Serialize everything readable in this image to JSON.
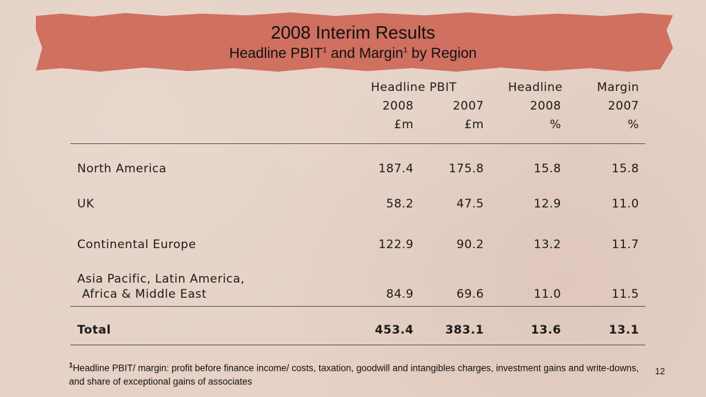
{
  "title": "2008 Interim Results",
  "subtitle_parts": {
    "a": "Headline PBIT",
    "sup1": "1",
    "b": " and Margin",
    "sup2": "1",
    "c": " by Region"
  },
  "header": {
    "group1": "Headline PBIT",
    "group2_a": "Headline",
    "group2_b": "Margin",
    "cols": [
      {
        "year": "2008",
        "unit": "£m"
      },
      {
        "year": "2007",
        "unit": "£m"
      },
      {
        "year": "2008",
        "unit": "%"
      },
      {
        "year": "2007",
        "unit": "%"
      }
    ]
  },
  "rows": [
    {
      "region": "North America",
      "values": [
        "187.4",
        "175.8",
        "15.8",
        "15.8"
      ]
    },
    {
      "region": "UK",
      "values": [
        "58.2",
        "47.5",
        "12.9",
        "11.0"
      ]
    },
    {
      "region": "Continental Europe",
      "values": [
        "122.9",
        "90.2",
        "13.2",
        "11.7"
      ]
    },
    {
      "region_line1": "Asia Pacific, Latin America,",
      "region_line2": "Africa & Middle East",
      "values": [
        "84.9",
        "69.6",
        "11.0",
        "11.5"
      ]
    }
  ],
  "total": {
    "label": "Total",
    "values": [
      "453.4",
      "383.1",
      "13.6",
      "13.1"
    ]
  },
  "footnote": {
    "marker": "1",
    "text": "Headline PBIT/ margin: profit before finance income/ costs, taxation, goodwill and intangibles charges, investment gains and write-downs, and share of exceptional gains of associates"
  },
  "page_number": "12"
}
